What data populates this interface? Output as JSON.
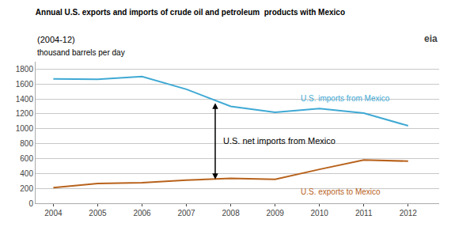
{
  "chart_data": {
    "type": "line",
    "title": "Annual U.S. exports and imports of crude oil and petroleum  products with Mexico",
    "subtitle": "(2004-12)",
    "ylabel": "thousand barrels per day",
    "x": [
      2004,
      2005,
      2006,
      2007,
      2008,
      2009,
      2010,
      2011,
      2012
    ],
    "series": [
      {
        "name": "U.S. imports from Mexico",
        "color": "#3fa9d4",
        "values": [
          1670,
          1665,
          1700,
          1530,
          1300,
          1220,
          1270,
          1210,
          1040
        ]
      },
      {
        "name": "U.S. exports to Mexico",
        "color": "#b8621b",
        "values": [
          210,
          265,
          275,
          310,
          335,
          320,
          455,
          580,
          565
        ]
      }
    ],
    "xlim": [
      2003.6,
      2012.7
    ],
    "xticks": [
      2004,
      2005,
      2006,
      2007,
      2008,
      2009,
      2010,
      2011,
      2012
    ],
    "ylim": [
      0,
      1900
    ],
    "yticks": [
      0,
      200,
      400,
      600,
      800,
      1000,
      1200,
      1400,
      1600,
      1800
    ],
    "grid": "y",
    "annotations": [
      {
        "text": "U.S. net imports from Mexico",
        "x": 2007.65,
        "y_top": 1360,
        "y_bottom": 320
      },
      {
        "text": "eia"
      }
    ]
  }
}
